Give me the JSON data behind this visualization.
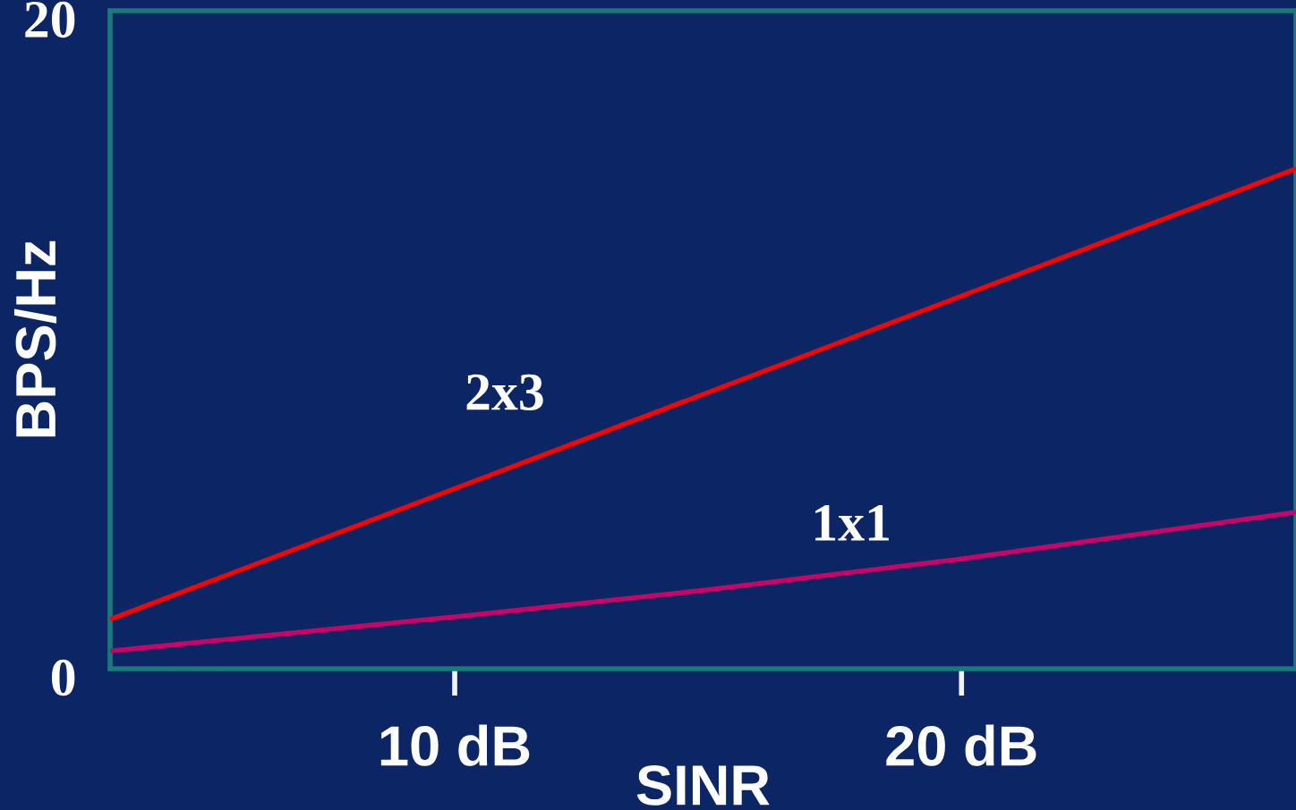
{
  "chart_data": {
    "type": "line",
    "xlabel": "SINR",
    "ylabel": "BPS/Hz",
    "xlim": [
      3.2,
      26.6
    ],
    "ylim": [
      0,
      20
    ],
    "xticks": [
      {
        "value": 10,
        "label": "10 dB"
      },
      {
        "value": 20,
        "label": "20 dB"
      }
    ],
    "yticks": [
      0,
      20
    ],
    "grid": false,
    "legend": false,
    "line_style": "solid",
    "series": [
      {
        "name": "2x3",
        "color": "#ff0000",
        "x": [
          3.2,
          15,
          26.6
        ],
        "values": [
          1.5,
          8.4,
          15.2
        ]
      },
      {
        "name": "1x1",
        "color": "#cc0066",
        "x": [
          3.2,
          10,
          15,
          20,
          26.6
        ],
        "values": [
          0.54,
          1.58,
          2.4,
          3.34,
          4.76
        ]
      }
    ]
  }
}
